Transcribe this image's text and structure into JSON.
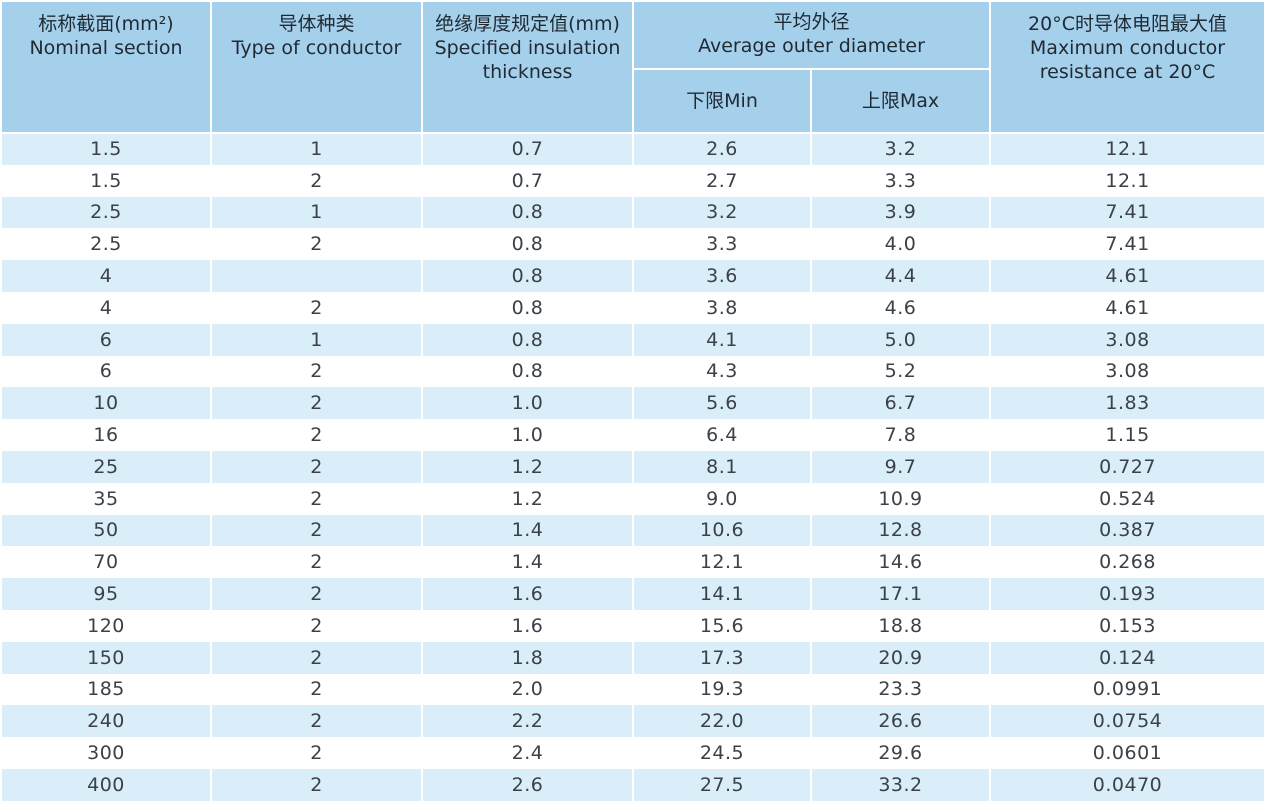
{
  "headers": {
    "nominal_cn": "标称截面(mm²)",
    "nominal_en": "Nominal section",
    "type_cn": "导体种类",
    "type_en": "Type of conductor",
    "insulation_cn": "绝缘厚度规定值(mm)",
    "insulation_en1": "Specified insulation",
    "insulation_en2": "thickness",
    "diameter_cn": "平均外径",
    "diameter_en": "Average outer diameter",
    "min_label": "下限Min",
    "max_label": "上限Max",
    "resistance_cn": "20°C时导体电阻最大值",
    "resistance_en1": "Maximum conductor",
    "resistance_en2": "resistance at 20°C"
  },
  "rows": [
    [
      "1.5",
      "1",
      "0.7",
      "2.6",
      "3.2",
      "12.1"
    ],
    [
      "1.5",
      "2",
      "0.7",
      "2.7",
      "3.3",
      "12.1"
    ],
    [
      "2.5",
      "1",
      "0.8",
      "3.2",
      "3.9",
      "7.41"
    ],
    [
      "2.5",
      "2",
      "0.8",
      "3.3",
      "4.0",
      "7.41"
    ],
    [
      "4",
      "",
      "0.8",
      "3.6",
      "4.4",
      "4.61"
    ],
    [
      "4",
      "2",
      "0.8",
      "3.8",
      "4.6",
      "4.61"
    ],
    [
      "6",
      "1",
      "0.8",
      "4.1",
      "5.0",
      "3.08"
    ],
    [
      "6",
      "2",
      "0.8",
      "4.3",
      "5.2",
      "3.08"
    ],
    [
      "10",
      "2",
      "1.0",
      "5.6",
      "6.7",
      "1.83"
    ],
    [
      "16",
      "2",
      "1.0",
      "6.4",
      "7.8",
      "1.15"
    ],
    [
      "25",
      "2",
      "1.2",
      "8.1",
      "9.7",
      "0.727"
    ],
    [
      "35",
      "2",
      "1.2",
      "9.0",
      "10.9",
      "0.524"
    ],
    [
      "50",
      "2",
      "1.4",
      "10.6",
      "12.8",
      "0.387"
    ],
    [
      "70",
      "2",
      "1.4",
      "12.1",
      "14.6",
      "0.268"
    ],
    [
      "95",
      "2",
      "1.6",
      "14.1",
      "17.1",
      "0.193"
    ],
    [
      "120",
      "2",
      "1.6",
      "15.6",
      "18.8",
      "0.153"
    ],
    [
      "150",
      "2",
      "1.8",
      "17.3",
      "20.9",
      "0.124"
    ],
    [
      "185",
      "2",
      "2.0",
      "19.3",
      "23.3",
      "0.0991"
    ],
    [
      "240",
      "2",
      "2.2",
      "22.0",
      "26.6",
      "0.0754"
    ],
    [
      "300",
      "2",
      "2.4",
      "24.5",
      "29.6",
      "0.0601"
    ],
    [
      "400",
      "2",
      "2.6",
      "27.5",
      "33.2",
      "0.0470"
    ]
  ]
}
